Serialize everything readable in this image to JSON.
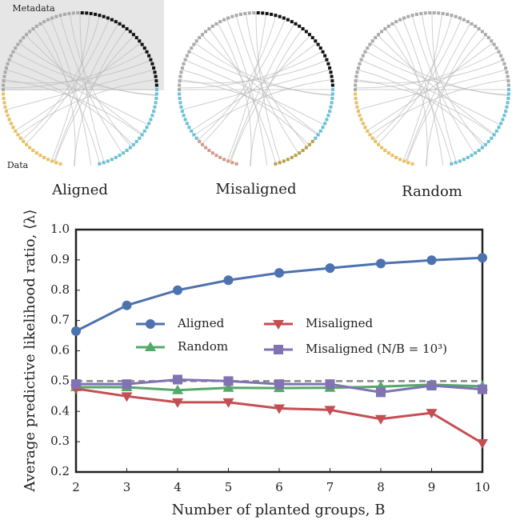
{
  "diagrams": {
    "labels": [
      "Aligned",
      "Misaligned",
      "Random"
    ],
    "metadata_label": "Metadata",
    "data_label": "Data"
  },
  "chart_data": {
    "type": "line",
    "x_label": "Number of planted groups, B",
    "y_label": "Average predictive likelihood ratio, ⟨λ⟩",
    "x": [
      2,
      3,
      4,
      5,
      6,
      7,
      8,
      9,
      10
    ],
    "xlim": [
      2,
      10
    ],
    "xticks": [
      2,
      3,
      4,
      5,
      6,
      7,
      8,
      9,
      10
    ],
    "ylim": [
      0.2,
      1.0
    ],
    "yticks": [
      0.2,
      0.3,
      0.4,
      0.5,
      0.6,
      0.7,
      0.8,
      0.9,
      {
        "value": 1.0,
        "label": "1.0"
      }
    ],
    "reference_line": 0.5,
    "series": [
      {
        "name": "Aligned",
        "color": "#4c72b0",
        "marker": "circle",
        "values": [
          0.665,
          0.75,
          0.8,
          0.833,
          0.857,
          0.873,
          0.888,
          0.899,
          0.907
        ]
      },
      {
        "name": "Random",
        "color": "#55a868",
        "marker": "triangle-up",
        "values": [
          0.48,
          0.48,
          0.47,
          0.478,
          0.477,
          0.478,
          0.482,
          0.488,
          0.483
        ]
      },
      {
        "name": "Misaligned",
        "color": "#c44e52",
        "marker": "triangle-down",
        "values": [
          0.475,
          0.45,
          0.43,
          0.43,
          0.41,
          0.405,
          0.375,
          0.395,
          0.295
        ]
      },
      {
        "name": "Misaligned (N/B = 10³)",
        "color": "#8172b2",
        "marker": "square",
        "values": [
          0.49,
          0.49,
          0.505,
          0.5,
          0.49,
          0.49,
          0.463,
          0.485,
          0.473
        ]
      }
    ]
  }
}
